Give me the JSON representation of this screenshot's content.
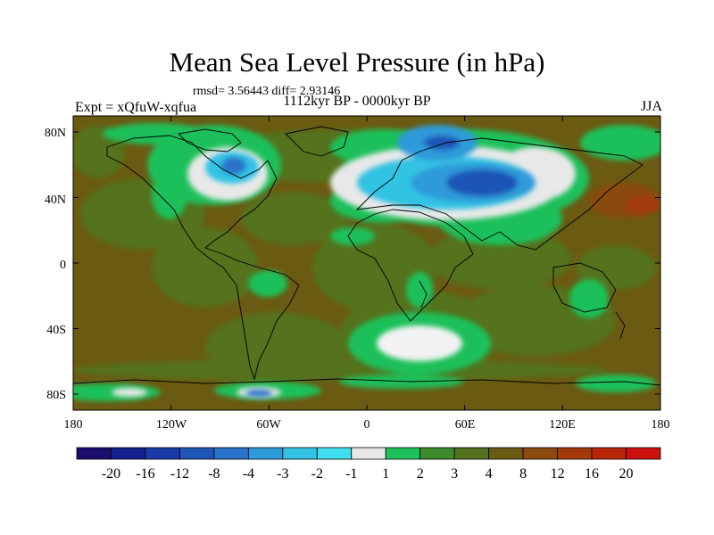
{
  "title": "Mean Sea Level Pressure (in hPa)",
  "stats": "rmsd= 3.56443 diff= 2.93146",
  "period": "1112kyr BP - 0000kyr BP",
  "experiment": "Expt = xQfuW-xqfua",
  "season": "JJA",
  "axes": {
    "lat_labels": [
      "80N",
      "40N",
      "0",
      "40S",
      "80S"
    ],
    "lon_labels": [
      "180",
      "120W",
      "60W",
      "0",
      "60E",
      "120E",
      "180"
    ]
  },
  "colorbar": {
    "labels": [
      "-20",
      "-16",
      "-12",
      "-8",
      "-4",
      "-3",
      "-2",
      "-1",
      "1",
      "2",
      "3",
      "4",
      "8",
      "12",
      "16",
      "20"
    ],
    "colors": [
      "#1a0d6b",
      "#15208f",
      "#1a3aa8",
      "#1f55b5",
      "#2a73c9",
      "#2f9ad9",
      "#33c2e3",
      "#40dff0",
      "#e8e8e8",
      "#1ec05a",
      "#3d8a2c",
      "#55721e",
      "#6b5a12",
      "#8a4a10",
      "#a33a0c",
      "#b8260a",
      "#cc1010"
    ]
  },
  "colors": {
    "background_field": "#6b5a12",
    "coastline": "#000000"
  }
}
